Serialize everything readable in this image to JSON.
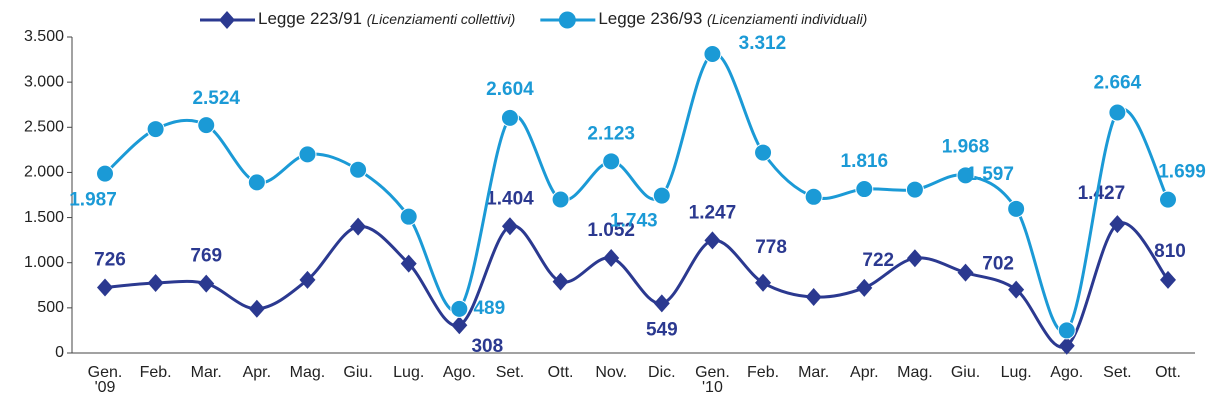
{
  "chart_data": {
    "type": "line",
    "categories": [
      "Gen.\n'09",
      "Feb.",
      "Mar.",
      "Apr.",
      "Mag.",
      "Giu.",
      "Lug.",
      "Ago.",
      "Set.",
      "Ott.",
      "Nov.",
      "Dic.",
      "Gen.\n'10",
      "Feb.",
      "Mar.",
      "Apr.",
      "Mag.",
      "Giu.",
      "Lug.",
      "Ago.",
      "Set.",
      "Ott."
    ],
    "series": [
      {
        "name": "Legge 223/91 (Licenziamenti collettivi)",
        "color": "#2b3990",
        "marker": "diamond",
        "values": [
          726,
          775,
          769,
          490,
          810,
          1400,
          990,
          308,
          1404,
          790,
          1052,
          549,
          1247,
          778,
          620,
          722,
          1050,
          890,
          702,
          80,
          1427,
          810
        ],
        "value_labels": [
          "726",
          null,
          "769",
          null,
          null,
          null,
          null,
          "308",
          "1.404",
          null,
          "1.052",
          "549",
          "1.247",
          "778",
          null,
          "722",
          null,
          null,
          "702",
          null,
          "1.427",
          "810"
        ]
      },
      {
        "name": "Legge 236/93 (Licenziamenti individuali)",
        "color": "#1b9ad6",
        "marker": "circle",
        "values": [
          1987,
          2480,
          2524,
          1890,
          2200,
          2030,
          1510,
          489,
          2604,
          1700,
          2123,
          1743,
          3312,
          2220,
          1730,
          1816,
          1810,
          1968,
          1597,
          250,
          2664,
          1699
        ],
        "value_labels": [
          "1.987",
          null,
          "2.524",
          null,
          null,
          null,
          null,
          "489",
          "2.604",
          null,
          "2.123",
          "1.743",
          "3.312",
          null,
          null,
          "1.816",
          null,
          "1.968",
          "1.597",
          null,
          "2.664",
          "1.699"
        ]
      }
    ],
    "ylim": [
      0,
      3500
    ],
    "yticks": [
      0,
      500,
      {
        "value": 1000,
        "label": "1.000"
      },
      {
        "value": 1500,
        "label": "1.500"
      },
      {
        "value": 2000,
        "label": "2.000"
      },
      {
        "value": 2500,
        "label": "2.500"
      },
      {
        "value": 3000,
        "label": "3.000"
      },
      {
        "value": 3500,
        "label": "3.500"
      }
    ],
    "legend": "top",
    "grid": false
  }
}
